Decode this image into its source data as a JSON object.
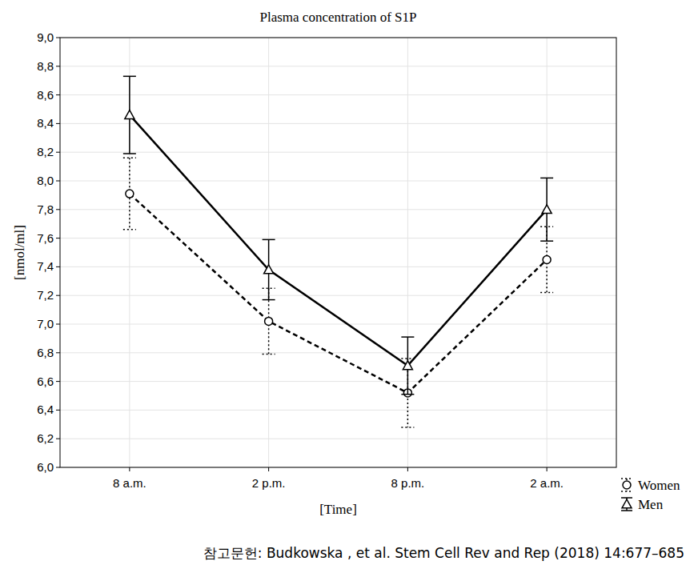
{
  "chart_data": {
    "type": "line",
    "title": "Plasma concentration of S1P",
    "x_label": "[Time]",
    "y_label": "[nmol/ml]",
    "source": "참고문헌: Budkowska , et al. Stem Cell Rev and Rep (2018) 14:677–685",
    "categories": [
      "8 a.m.",
      "2 p.m.",
      "8 p.m.",
      "2 a.m."
    ],
    "series": [
      {
        "name": "Women",
        "color": "#000000",
        "line_style": "dashed",
        "marker": "circle",
        "values": [
          7.91,
          7.02,
          6.52,
          7.45
        ],
        "errors": [
          0.25,
          0.23,
          0.24,
          0.23
        ]
      },
      {
        "name": "Men",
        "color": "#000000",
        "line_style": "solid",
        "marker": "triangle",
        "values": [
          8.46,
          7.38,
          6.71,
          7.8
        ],
        "errors": [
          0.27,
          0.21,
          0.2,
          0.22
        ]
      }
    ],
    "ylim": [
      6.0,
      9.0
    ],
    "yticks": [
      {
        "value": 6.0,
        "label": "6,0"
      },
      {
        "value": 6.2,
        "label": "6,2"
      },
      {
        "value": 6.4,
        "label": "6,4"
      },
      {
        "value": 6.6,
        "label": "6,6"
      },
      {
        "value": 6.8,
        "label": "6,8"
      },
      {
        "value": 7.0,
        "label": "7,0"
      },
      {
        "value": 7.2,
        "label": "7,2"
      },
      {
        "value": 7.4,
        "label": "7,4"
      },
      {
        "value": 7.6,
        "label": "7,6"
      },
      {
        "value": 7.8,
        "label": "7,8"
      },
      {
        "value": 8.0,
        "label": "8,0"
      },
      {
        "value": 8.2,
        "label": "8,2"
      },
      {
        "value": 8.4,
        "label": "8,4"
      },
      {
        "value": 8.6,
        "label": "8,6"
      },
      {
        "value": 8.8,
        "label": "8,8"
      },
      {
        "value": 9.0,
        "label": "9,0"
      }
    ],
    "grid": true,
    "legend": "bottom-right"
  }
}
